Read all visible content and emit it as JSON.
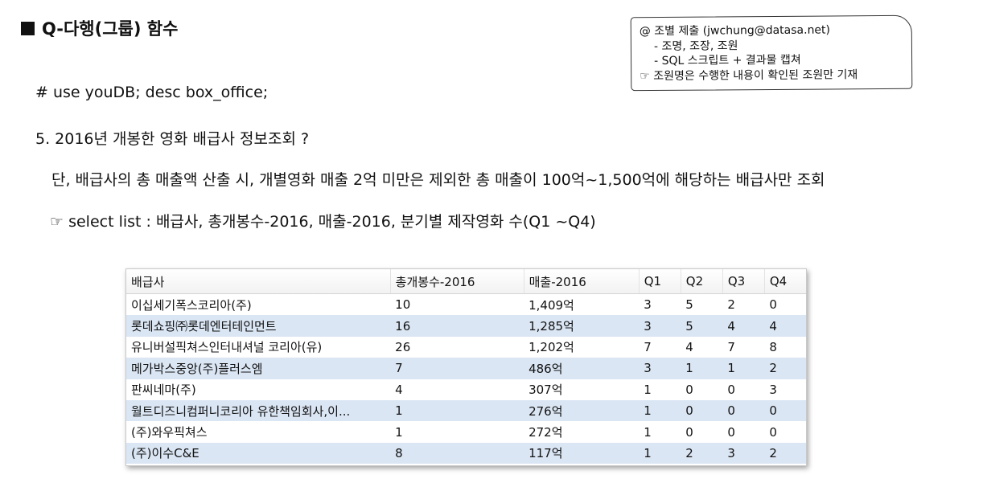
{
  "header": {
    "title": "Q-다행(그룹) 함수"
  },
  "note": {
    "line1": "@ 조별 제출 (jwchung@datasa.net)",
    "line2": "- 조명, 조장, 조원",
    "line3": "- SQL 스크립트 + 결과물 캡쳐",
    "line4": "☞ 조원명은 수행한 내용이 확인된 조원만 기재"
  },
  "body": {
    "use_line": "# use youDB; desc box_office;",
    "question": "5. 2016년 개봉한 영화 배급사 정보조회 ?",
    "condition": "단, 배급사의 총 매출액 산출 시, 개별영화 매출 2억 미만은 제외한 총 매출이 100억~1,500억에 해당하는 배급사만 조회",
    "select_list": "☞ select list : 배급사, 총개봉수-2016, 매출-2016, 분기별 제작영화 수(Q1 ~Q4)"
  },
  "table": {
    "headers": [
      "배급사",
      "총개봉수-2016",
      "매출-2016",
      "Q1",
      "Q2",
      "Q3",
      "Q4"
    ],
    "rows": [
      [
        "이십세기폭스코리아(주)",
        "10",
        "1,409억",
        "3",
        "5",
        "2",
        "0"
      ],
      [
        "롯데쇼핑㈜롯데엔터테인먼트",
        "16",
        "1,285억",
        "3",
        "5",
        "4",
        "4"
      ],
      [
        "유니버설픽쳐스인터내셔널 코리아(유)",
        "26",
        "1,202억",
        "7",
        "4",
        "7",
        "8"
      ],
      [
        "메가박스중앙(주)플러스엠",
        "7",
        "486억",
        "3",
        "1",
        "1",
        "2"
      ],
      [
        "판씨네마(주)",
        "4",
        "307억",
        "1",
        "0",
        "0",
        "3"
      ],
      [
        "월트디즈니컴퍼니코리아 유한책임회사,이...",
        "1",
        "276억",
        "1",
        "0",
        "0",
        "0"
      ],
      [
        "(주)와우픽쳐스",
        "1",
        "272억",
        "1",
        "0",
        "0",
        "0"
      ],
      [
        "(주)이수C&E",
        "8",
        "117억",
        "1",
        "2",
        "3",
        "2"
      ]
    ]
  }
}
